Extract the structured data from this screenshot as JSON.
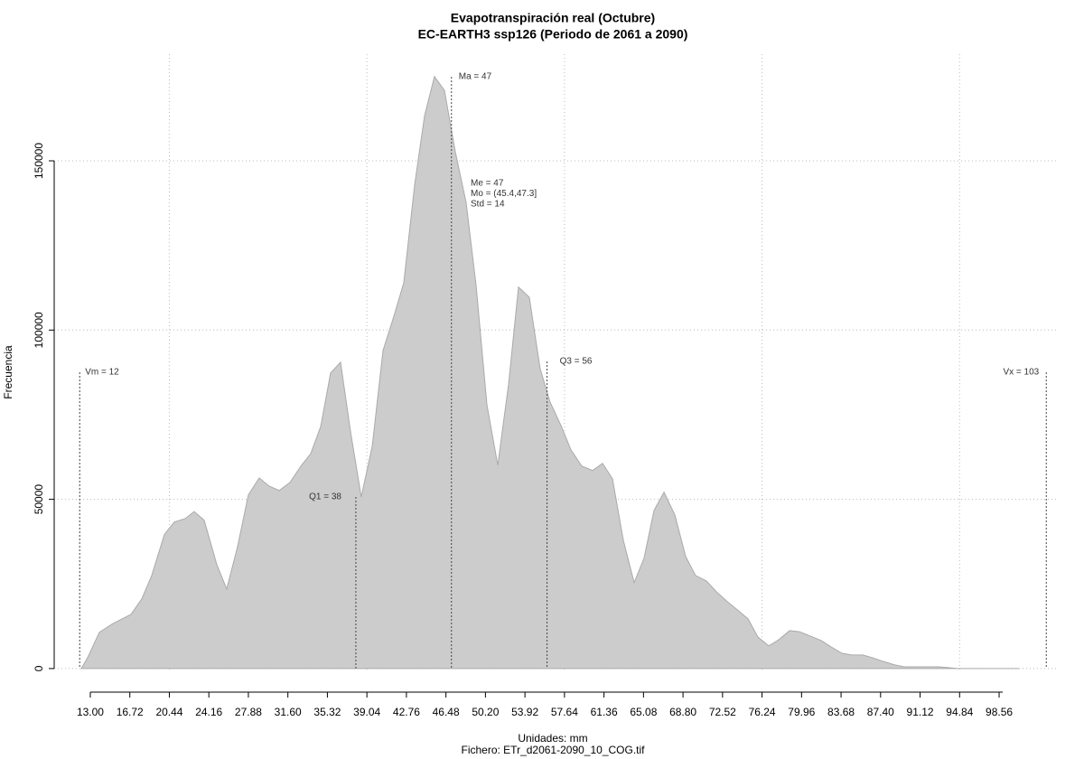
{
  "chart_data": {
    "type": "area",
    "title": "Evapotranspiración real (Octubre)",
    "subtitle": "EC-EARTH3 ssp126 (Periodo de 2061 a 2090)",
    "x_label": "Unidades: mm",
    "file_label": "Fichero: ETr_d2061-2090_10_COG.tif",
    "y_label": "Frecuencia",
    "color": "#cccccc",
    "grid": true,
    "x": [
      12.15,
      12.74,
      13.85,
      15.13,
      16.83,
      17.85,
      18.78,
      19.97,
      20.91,
      21.93,
      22.78,
      23.72,
      24.91,
      25.84,
      26.86,
      27.88,
      28.9,
      29.84,
      30.78,
      31.8,
      32.82,
      33.75,
      34.69,
      35.62,
      36.56,
      37.49,
      38.51,
      39.54,
      40.56,
      41.58,
      42.51,
      43.53,
      44.47,
      45.4,
      46.34,
      47.36,
      48.38,
      49.32,
      50.34,
      51.36,
      52.38,
      53.31,
      54.33,
      55.35,
      56.29,
      57.31,
      58.25,
      59.27,
      60.29,
      61.22,
      62.16,
      63.18,
      64.2,
      65.13,
      66.07,
      67.01,
      68.03,
      69.05,
      69.98,
      71.0,
      71.94,
      72.96,
      73.9,
      74.92,
      75.85,
      76.87,
      77.81,
      78.83,
      79.76,
      80.78,
      81.8,
      82.74,
      83.76,
      84.7,
      85.72,
      86.65,
      87.67,
      88.69,
      89.63,
      91.24,
      92.95,
      94.65,
      97.2,
      100.43
    ],
    "values": [
      0,
      3200,
      10700,
      13300,
      16000,
      20600,
      27500,
      39600,
      43300,
      44300,
      46400,
      43800,
      30700,
      23500,
      36000,
      51300,
      56300,
      53900,
      52600,
      55000,
      59800,
      63500,
      71500,
      87300,
      90500,
      70200,
      50700,
      65700,
      94000,
      104100,
      114000,
      142800,
      163400,
      174900,
      170800,
      152700,
      137700,
      113200,
      77900,
      60100,
      84100,
      112700,
      109700,
      88600,
      78700,
      71800,
      64600,
      59800,
      58500,
      60600,
      56100,
      37900,
      25400,
      32600,
      46700,
      52100,
      45400,
      33100,
      27500,
      25900,
      22700,
      19800,
      17400,
      14700,
      9300,
      6700,
      8500,
      11200,
      10900,
      9600,
      8300,
      6400,
      4500,
      4000,
      4000,
      3200,
      2100,
      1100,
      500,
      500,
      500,
      0,
      0,
      0
    ],
    "xlim": [
      9.6,
      104
    ],
    "ylim": [
      -7500,
      181500
    ],
    "xticks": [
      {
        "value": 13,
        "label": "13.00"
      },
      16.72,
      20.44,
      24.16,
      27.88,
      {
        "value": 31.6,
        "label": "31.60"
      },
      35.32,
      39.04,
      42.76,
      46.48,
      {
        "value": 50.2,
        "label": "50.20"
      },
      53.92,
      57.64,
      61.36,
      65.08,
      {
        "value": 68.8,
        "label": "68.80"
      },
      72.52,
      76.24,
      79.96,
      83.68,
      {
        "value": 87.4,
        "label": "87.40"
      },
      91.12,
      94.84,
      98.56
    ],
    "yticks": [
      0,
      50000,
      100000,
      150000
    ],
    "annotations": [
      {
        "label": "Vm = 12",
        "value": 12
      },
      {
        "label": "Q1 = 38",
        "value": 38
      },
      {
        "label": "Ma = 47",
        "value": 47
      },
      {
        "label": "Q3 = 56",
        "value": 56
      },
      {
        "label": "Vx = 103",
        "value": 103
      }
    ],
    "stats": [
      "Me = 47",
      "Mo = (45.4,47.3]",
      "Std = 14"
    ]
  }
}
